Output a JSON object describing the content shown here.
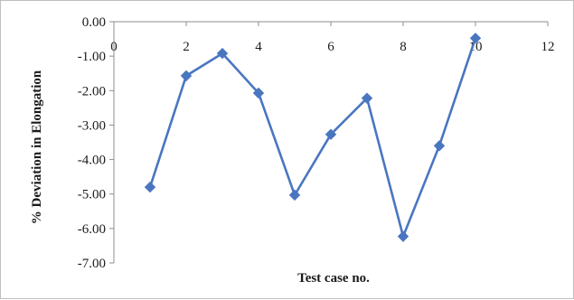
{
  "chart_data": {
    "type": "line",
    "title": "",
    "xlabel": "Test case no.",
    "ylabel": "% Deviation in Elongation",
    "xlim": [
      0,
      12
    ],
    "ylim": [
      -7,
      0
    ],
    "x_axis_position": "top (crosses at y = 0.00)",
    "x_ticks": [
      0,
      2,
      4,
      6,
      8,
      10,
      12
    ],
    "x_tick_labels": [
      "0",
      "2",
      "4",
      "6",
      "8",
      "10",
      "12"
    ],
    "y_ticks": [
      0,
      -1,
      -2,
      -3,
      -4,
      -5,
      -6,
      -7
    ],
    "y_tick_labels": [
      "0.00",
      "-1.00",
      "-2.00",
      "-3.00",
      "-4.00",
      "-5.00",
      "-6.00",
      "-7.00"
    ],
    "grid": false,
    "legend": "none",
    "series": [
      {
        "color": "#4a76c0",
        "marker": "diamond",
        "x": [
          1,
          2,
          3,
          4,
          5,
          6,
          7,
          8,
          9,
          10
        ],
        "values": [
          -4.8,
          -1.57,
          -0.92,
          -2.07,
          -5.03,
          -3.27,
          -2.22,
          -6.23,
          -3.6,
          -0.48
        ]
      }
    ]
  }
}
